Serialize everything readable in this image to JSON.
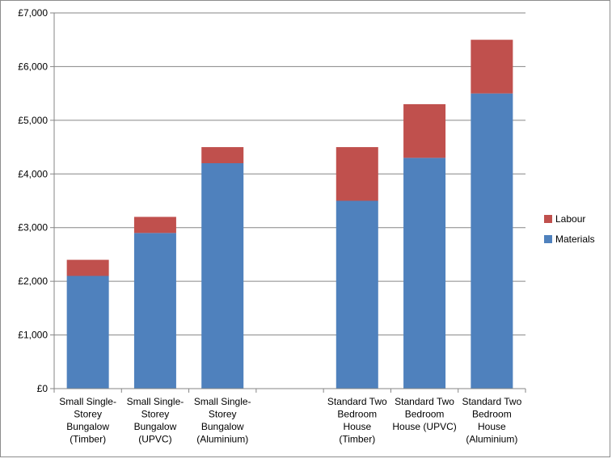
{
  "chart_data": {
    "type": "bar",
    "stacked": true,
    "title": "",
    "xlabel": "",
    "ylabel": "",
    "ylim": [
      0,
      7000
    ],
    "yticks": [
      0,
      1000,
      2000,
      3000,
      4000,
      5000,
      6000,
      7000
    ],
    "ytick_labels": [
      "£0",
      "£1,000",
      "£2,000",
      "£3,000",
      "£4,000",
      "£5,000",
      "£6,000",
      "£7,000"
    ],
    "grid": true,
    "legend_position": "right",
    "categories": [
      [
        "Small Single-",
        "Storey",
        "Bungalow",
        "(Timber)"
      ],
      [
        "Small Single-",
        "Storey",
        "Bungalow",
        "(UPVC)"
      ],
      [
        "Small Single-",
        "Storey",
        "Bungalow",
        "(Aluminium)"
      ],
      [],
      [
        "Standard Two",
        "Bedroom",
        "House",
        "(Timber)"
      ],
      [
        "Standard Two",
        "Bedroom",
        "House (UPVC)"
      ],
      [
        "Standard Two",
        "Bedroom",
        "House",
        "(Aluminium)"
      ]
    ],
    "series": [
      {
        "name": "Materials",
        "color": "#4F81BD",
        "values": [
          2100,
          2900,
          4200,
          null,
          3500,
          4300,
          5500
        ]
      },
      {
        "name": "Labour",
        "color": "#C0504D",
        "values": [
          300,
          300,
          300,
          null,
          1000,
          1000,
          1000
        ]
      }
    ],
    "legend_order": [
      "Labour",
      "Materials"
    ]
  }
}
